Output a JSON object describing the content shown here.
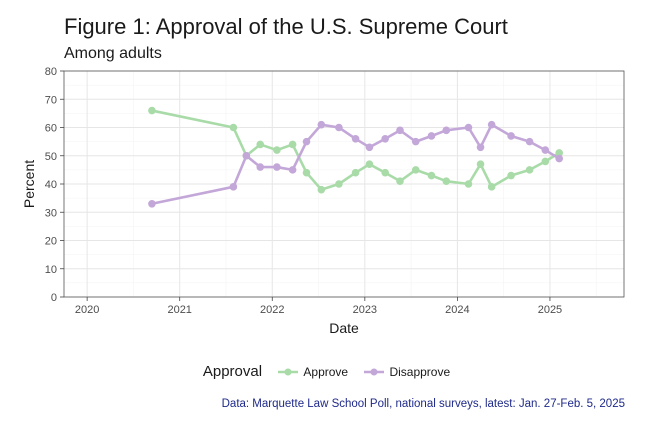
{
  "chart_data": {
    "type": "line",
    "title": "Figure 1: Approval of the U.S. Supreme Court",
    "subtitle": "Among adults",
    "xlabel": "Date",
    "ylabel": "Percent",
    "xlim": [
      2019.75,
      2025.8
    ],
    "ylim": [
      0,
      80
    ],
    "x_ticks": [
      2020,
      2021,
      2022,
      2023,
      2024,
      2025
    ],
    "y_ticks": [
      0,
      10,
      20,
      30,
      40,
      50,
      60,
      70,
      80
    ],
    "grid": true,
    "legend_title": "Approval",
    "legend_position": "bottom",
    "caption": "Data: Marquette Law School Poll, national surveys, latest: Jan. 27-Feb. 5, 2025",
    "x": [
      2020.7,
      2021.58,
      2021.72,
      2021.87,
      2022.05,
      2022.22,
      2022.37,
      2022.53,
      2022.72,
      2022.9,
      2023.05,
      2023.22,
      2023.38,
      2023.55,
      2023.72,
      2023.88,
      2024.12,
      2024.25,
      2024.37,
      2024.58,
      2024.78,
      2024.95,
      2025.1
    ],
    "series": [
      {
        "name": "Approve",
        "color": "#a8dba8",
        "values": [
          66,
          60,
          50,
          54,
          52,
          54,
          44,
          38,
          40,
          44,
          47,
          44,
          41,
          45,
          43,
          41,
          40,
          47,
          39,
          43,
          45,
          48,
          51
        ]
      },
      {
        "name": "Disapprove",
        "color": "#c3a7d8",
        "values": [
          33,
          39,
          50,
          46,
          46,
          45,
          55,
          61,
          60,
          56,
          53,
          56,
          59,
          55,
          57,
          59,
          60,
          53,
          61,
          57,
          55,
          52,
          49
        ]
      }
    ]
  }
}
